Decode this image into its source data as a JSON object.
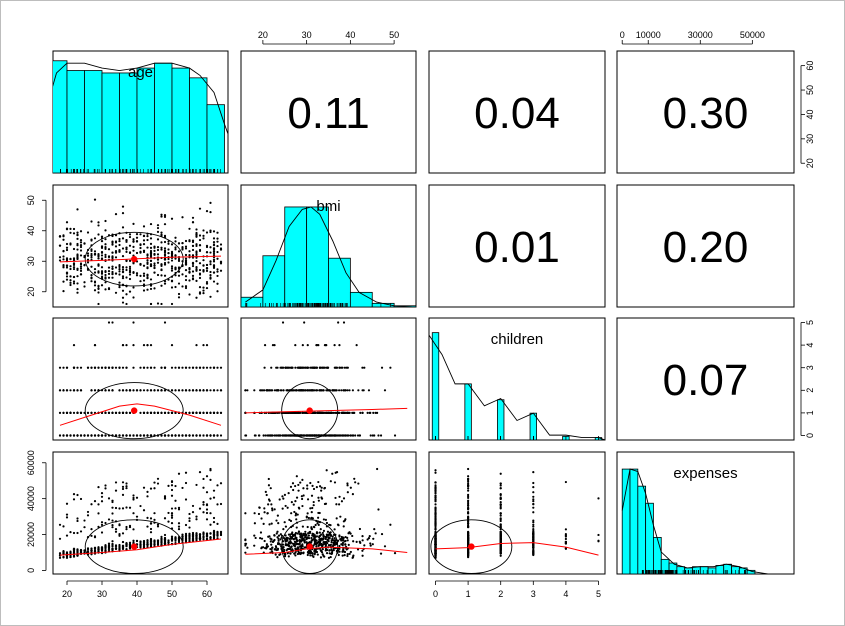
{
  "chart_data": {
    "type": "scatter",
    "variables": [
      "age",
      "bmi",
      "children",
      "expenses"
    ],
    "axis_ticks": {
      "age": [
        20,
        30,
        40,
        50,
        60
      ],
      "bmi": [
        20,
        30,
        40,
        50
      ],
      "children": [
        0,
        1,
        2,
        3,
        4,
        5
      ],
      "expenses": [
        0,
        10000,
        30000,
        50000
      ],
      "expenses_left": [
        0,
        20000,
        40000,
        60000
      ]
    },
    "axis_ranges": {
      "age": [
        16,
        66
      ],
      "bmi": [
        15,
        55
      ],
      "children": [
        -0.2,
        5.2
      ],
      "expenses": [
        -2000,
        66000
      ]
    },
    "correlations": [
      {
        "row": "age",
        "col": "bmi",
        "label": "0.11"
      },
      {
        "row": "age",
        "col": "children",
        "label": "0.04"
      },
      {
        "row": "age",
        "col": "expenses",
        "label": "0.30"
      },
      {
        "row": "bmi",
        "col": "children",
        "label": "0.01"
      },
      {
        "row": "bmi",
        "col": "expenses",
        "label": "0.20"
      },
      {
        "row": "children",
        "col": "expenses",
        "label": "0.07"
      }
    ],
    "histograms": {
      "age": {
        "bins": [
          [
            15,
            20,
            0.92
          ],
          [
            20,
            25,
            0.84
          ],
          [
            25,
            30,
            0.84
          ],
          [
            30,
            35,
            0.82
          ],
          [
            35,
            40,
            0.82
          ],
          [
            40,
            45,
            0.86
          ],
          [
            45,
            50,
            0.9
          ],
          [
            50,
            55,
            0.86
          ],
          [
            55,
            60,
            0.78
          ],
          [
            60,
            65,
            0.56
          ]
        ],
        "density": [
          [
            15,
            0.62
          ],
          [
            17,
            0.82
          ],
          [
            20,
            0.9
          ],
          [
            25,
            0.9
          ],
          [
            30,
            0.86
          ],
          [
            35,
            0.84
          ],
          [
            40,
            0.86
          ],
          [
            45,
            0.9
          ],
          [
            50,
            0.9
          ],
          [
            55,
            0.86
          ],
          [
            58,
            0.8
          ],
          [
            62,
            0.66
          ],
          [
            65,
            0.4
          ],
          [
            66,
            0.32
          ]
        ]
      },
      "bmi": {
        "bins": [
          [
            15,
            20,
            0.08
          ],
          [
            20,
            25,
            0.42
          ],
          [
            25,
            30,
            0.82
          ],
          [
            30,
            35,
            0.82
          ],
          [
            35,
            40,
            0.4
          ],
          [
            40,
            45,
            0.12
          ],
          [
            45,
            50,
            0.03
          ],
          [
            50,
            55,
            0.01
          ]
        ],
        "density": [
          [
            16,
            0.04
          ],
          [
            20,
            0.14
          ],
          [
            23,
            0.38
          ],
          [
            26,
            0.66
          ],
          [
            29,
            0.8
          ],
          [
            31,
            0.82
          ],
          [
            33,
            0.76
          ],
          [
            36,
            0.54
          ],
          [
            39,
            0.28
          ],
          [
            42,
            0.12
          ],
          [
            46,
            0.04
          ],
          [
            50,
            0.01
          ],
          [
            54,
            0.0
          ]
        ]
      },
      "children": {
        "bins": [
          [
            -0.1,
            0.1,
            0.88
          ],
          [
            0.9,
            1.1,
            0.46
          ],
          [
            1.9,
            2.1,
            0.33
          ],
          [
            2.9,
            3.1,
            0.22
          ],
          [
            3.9,
            4.1,
            0.03
          ],
          [
            4.9,
            5.1,
            0.02
          ]
        ],
        "density": [
          [
            -0.2,
            0.86
          ],
          [
            0.2,
            0.7
          ],
          [
            0.6,
            0.46
          ],
          [
            1.0,
            0.46
          ],
          [
            1.5,
            0.28
          ],
          [
            2.0,
            0.34
          ],
          [
            2.5,
            0.16
          ],
          [
            3.0,
            0.22
          ],
          [
            3.5,
            0.04
          ],
          [
            4.0,
            0.04
          ],
          [
            4.5,
            0.02
          ],
          [
            5.0,
            0.02
          ],
          [
            5.2,
            0.0
          ]
        ]
      },
      "expenses": {
        "bins": [
          [
            0,
            3000,
            0.86
          ],
          [
            3000,
            6000,
            0.86
          ],
          [
            6000,
            9000,
            0.72
          ],
          [
            9000,
            12000,
            0.58
          ],
          [
            12000,
            15000,
            0.3
          ],
          [
            15000,
            18000,
            0.12
          ],
          [
            18000,
            21000,
            0.09
          ],
          [
            21000,
            24000,
            0.06
          ],
          [
            24000,
            27000,
            0.05
          ],
          [
            27000,
            30000,
            0.06
          ],
          [
            30000,
            33000,
            0.06
          ],
          [
            33000,
            36000,
            0.05
          ],
          [
            36000,
            39000,
            0.07
          ],
          [
            39000,
            42000,
            0.08
          ],
          [
            42000,
            45000,
            0.06
          ],
          [
            45000,
            48000,
            0.05
          ],
          [
            48000,
            51000,
            0.03
          ]
        ],
        "density": [
          [
            0,
            0.52
          ],
          [
            3000,
            0.86
          ],
          [
            6000,
            0.84
          ],
          [
            9000,
            0.66
          ],
          [
            12000,
            0.4
          ],
          [
            15000,
            0.18
          ],
          [
            20000,
            0.08
          ],
          [
            25000,
            0.05
          ],
          [
            30000,
            0.06
          ],
          [
            35000,
            0.06
          ],
          [
            40000,
            0.08
          ],
          [
            45000,
            0.06
          ],
          [
            50000,
            0.02
          ],
          [
            56000,
            0.0
          ]
        ]
      }
    },
    "means": {
      "age": 39.2,
      "bmi": 30.7,
      "children": 1.1,
      "expenses": 13270
    },
    "loess": {
      "age_bmi": [
        [
          18,
          29.8
        ],
        [
          30,
          30.3
        ],
        [
          40,
          30.8
        ],
        [
          50,
          31.3
        ],
        [
          64,
          31.7
        ]
      ],
      "age_children": [
        [
          18,
          0.45
        ],
        [
          25,
          0.8
        ],
        [
          35,
          1.3
        ],
        [
          40,
          1.4
        ],
        [
          45,
          1.3
        ],
        [
          55,
          0.9
        ],
        [
          64,
          0.45
        ]
      ],
      "age_expenses": [
        [
          18,
          8500
        ],
        [
          30,
          10000
        ],
        [
          40,
          11500
        ],
        [
          50,
          14500
        ],
        [
          64,
          17500
        ]
      ],
      "bmi_children": [
        [
          16,
          1.0
        ],
        [
          25,
          1.05
        ],
        [
          35,
          1.1
        ],
        [
          45,
          1.15
        ],
        [
          53,
          1.2
        ]
      ],
      "bmi_expenses": [
        [
          16,
          9000
        ],
        [
          25,
          10000
        ],
        [
          30,
          12000
        ],
        [
          35,
          13000
        ],
        [
          45,
          12000
        ],
        [
          53,
          10000
        ]
      ],
      "children_expenses": [
        [
          0,
          12000
        ],
        [
          1,
          12700
        ],
        [
          2,
          15000
        ],
        [
          3,
          15500
        ],
        [
          4,
          13000
        ],
        [
          5,
          8500
        ]
      ]
    }
  }
}
